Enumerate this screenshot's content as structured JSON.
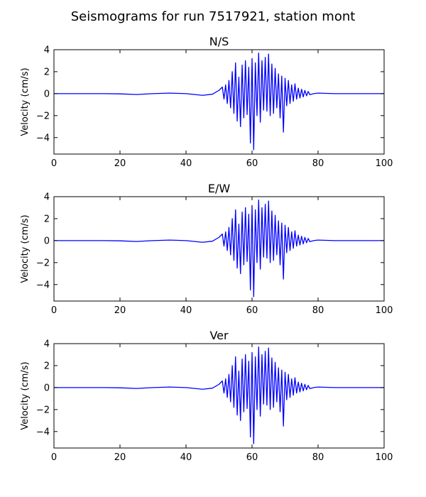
{
  "figure": {
    "suptitle": "Seismograms for run 7517921, station mont"
  },
  "colors": {
    "trace": "#0000ff",
    "axes": "#000000",
    "background": "#ffffff"
  },
  "chart_data": [
    {
      "type": "line",
      "title": "N/S",
      "xlabel": "",
      "ylabel": "Velocity (cm/s)",
      "xlim": [
        0,
        100
      ],
      "ylim": [
        -5.5,
        4.0
      ],
      "xticks": [
        0,
        20,
        40,
        60,
        80,
        100
      ],
      "yticks": [
        -4,
        -2,
        0,
        2,
        4
      ],
      "grid": false,
      "series": [
        {
          "x": [
            0,
            5,
            10,
            15,
            20,
            25,
            30,
            35,
            40,
            45,
            48,
            50,
            51,
            51.5,
            52,
            52.5,
            53,
            53.5,
            54,
            54.5,
            55,
            55.5,
            56,
            56.5,
            57,
            57.5,
            58,
            58.5,
            59,
            59.5,
            60,
            60.5,
            61,
            61.5,
            62,
            62.5,
            63,
            63.5,
            64,
            64.5,
            65,
            65.5,
            66,
            66.5,
            67,
            67.5,
            68,
            68.5,
            69,
            69.5,
            70,
            70.5,
            71,
            71.5,
            72,
            72.5,
            73,
            73.5,
            74,
            74.5,
            75,
            75.5,
            76,
            76.5,
            77,
            77.5,
            78,
            79,
            80,
            85,
            90,
            95,
            100
          ],
          "values": [
            0,
            0,
            0,
            0,
            -0.02,
            -0.08,
            0,
            0.05,
            0,
            -0.15,
            -0.05,
            0.3,
            0.6,
            -0.5,
            0.8,
            -0.9,
            1.2,
            -1.3,
            2.0,
            -1.8,
            2.8,
            -2.5,
            1.5,
            -3.0,
            2.6,
            -2.2,
            3.0,
            -1.9,
            2.4,
            -4.5,
            3.2,
            -5.1,
            2.8,
            -2.0,
            3.7,
            -2.6,
            3.0,
            -1.5,
            3.3,
            -1.6,
            3.6,
            -2.0,
            2.7,
            -1.8,
            2.3,
            -1.3,
            1.8,
            -2.2,
            1.6,
            -3.5,
            1.4,
            -1.1,
            1.2,
            -0.9,
            0.8,
            -0.7,
            0.9,
            -0.5,
            0.5,
            -0.4,
            0.4,
            -0.3,
            0.3,
            -0.2,
            0.2,
            -0.1,
            -0.05,
            0.02,
            0.05,
            0,
            0,
            0,
            0
          ]
        }
      ]
    },
    {
      "type": "line",
      "title": "E/W",
      "xlabel": "",
      "ylabel": "Velocity (cm/s)",
      "xlim": [
        0,
        100
      ],
      "ylim": [
        -5.5,
        4.0
      ],
      "xticks": [
        0,
        20,
        40,
        60,
        80,
        100
      ],
      "yticks": [
        -4,
        -2,
        0,
        2,
        4
      ],
      "grid": false,
      "series": [
        {
          "x": [
            0,
            5,
            10,
            15,
            20,
            25,
            30,
            35,
            40,
            45,
            48,
            50,
            51,
            51.5,
            52,
            52.5,
            53,
            53.5,
            54,
            54.5,
            55,
            55.5,
            56,
            56.5,
            57,
            57.5,
            58,
            58.5,
            59,
            59.5,
            60,
            60.5,
            61,
            61.5,
            62,
            62.5,
            63,
            63.5,
            64,
            64.5,
            65,
            65.5,
            66,
            66.5,
            67,
            67.5,
            68,
            68.5,
            69,
            69.5,
            70,
            70.5,
            71,
            71.5,
            72,
            72.5,
            73,
            73.5,
            74,
            74.5,
            75,
            75.5,
            76,
            76.5,
            77,
            77.5,
            78,
            79,
            80,
            85,
            90,
            95,
            100
          ],
          "values": [
            0,
            0,
            0,
            0,
            -0.02,
            -0.08,
            0,
            0.05,
            0,
            -0.15,
            -0.05,
            0.3,
            0.6,
            -0.5,
            0.8,
            -0.9,
            1.2,
            -1.3,
            2.0,
            -1.8,
            2.8,
            -2.5,
            1.5,
            -3.0,
            2.6,
            -2.2,
            3.0,
            -1.9,
            2.4,
            -4.5,
            3.2,
            -5.1,
            2.8,
            -2.0,
            3.7,
            -2.6,
            3.0,
            -1.5,
            3.3,
            -1.6,
            3.6,
            -2.0,
            2.7,
            -1.8,
            2.3,
            -1.3,
            1.8,
            -2.2,
            1.6,
            -3.5,
            1.4,
            -1.1,
            1.2,
            -0.9,
            0.8,
            -0.7,
            0.9,
            -0.5,
            0.5,
            -0.4,
            0.4,
            -0.3,
            0.3,
            -0.2,
            0.2,
            -0.1,
            -0.05,
            0.02,
            0.05,
            0,
            0,
            0,
            0
          ]
        }
      ]
    },
    {
      "type": "line",
      "title": "Ver",
      "xlabel": "",
      "ylabel": "Velocity (cm/s)",
      "xlim": [
        0,
        100
      ],
      "ylim": [
        -5.5,
        4.0
      ],
      "xticks": [
        0,
        20,
        40,
        60,
        80,
        100
      ],
      "yticks": [
        -4,
        -2,
        0,
        2,
        4
      ],
      "grid": false,
      "series": [
        {
          "x": [
            0,
            5,
            10,
            15,
            20,
            25,
            30,
            35,
            40,
            45,
            48,
            50,
            51,
            51.5,
            52,
            52.5,
            53,
            53.5,
            54,
            54.5,
            55,
            55.5,
            56,
            56.5,
            57,
            57.5,
            58,
            58.5,
            59,
            59.5,
            60,
            60.5,
            61,
            61.5,
            62,
            62.5,
            63,
            63.5,
            64,
            64.5,
            65,
            65.5,
            66,
            66.5,
            67,
            67.5,
            68,
            68.5,
            69,
            69.5,
            70,
            70.5,
            71,
            71.5,
            72,
            72.5,
            73,
            73.5,
            74,
            74.5,
            75,
            75.5,
            76,
            76.5,
            77,
            77.5,
            78,
            79,
            80,
            85,
            90,
            95,
            100
          ],
          "values": [
            0,
            0,
            0,
            0,
            -0.02,
            -0.08,
            0,
            0.05,
            0,
            -0.15,
            -0.05,
            0.3,
            0.6,
            -0.5,
            0.8,
            -0.9,
            1.2,
            -1.3,
            2.0,
            -1.8,
            2.8,
            -2.5,
            1.5,
            -3.0,
            2.6,
            -2.2,
            3.0,
            -1.9,
            2.4,
            -4.5,
            3.2,
            -5.1,
            2.8,
            -2.0,
            3.7,
            -2.6,
            3.0,
            -1.5,
            3.3,
            -1.6,
            3.6,
            -2.0,
            2.7,
            -1.8,
            2.3,
            -1.3,
            1.8,
            -2.2,
            1.6,
            -3.5,
            1.4,
            -1.1,
            1.2,
            -0.9,
            0.8,
            -0.7,
            0.9,
            -0.5,
            0.5,
            -0.4,
            0.4,
            -0.3,
            0.3,
            -0.2,
            0.2,
            -0.1,
            -0.05,
            0.02,
            0.05,
            0,
            0,
            0,
            0
          ]
        }
      ]
    }
  ]
}
